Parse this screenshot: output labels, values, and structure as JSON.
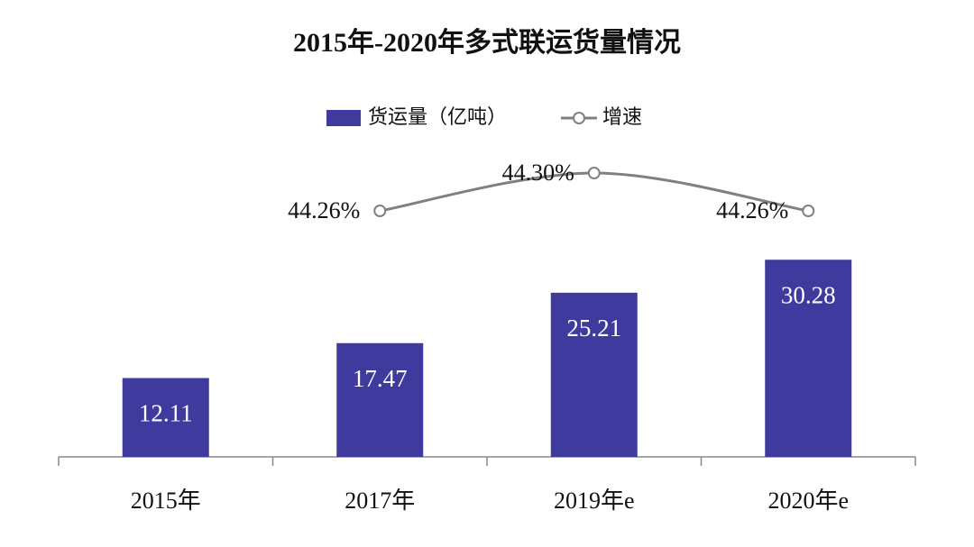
{
  "chart_data": {
    "type": "bar-line",
    "title": "2015年-2020年多式联运货量情况",
    "categories": [
      "2015年",
      "2017年",
      "2019年e",
      "2020年e"
    ],
    "series": [
      {
        "name": "货运量（亿吨）",
        "type": "bar",
        "color": "#3f3a9e",
        "values": [
          12.11,
          17.47,
          25.21,
          30.28
        ]
      },
      {
        "name": "增速",
        "type": "line",
        "axis": "y2",
        "color": "#808080",
        "values": [
          null,
          44.26,
          44.3,
          44.26
        ],
        "value_labels": [
          null,
          "44.26%",
          "44.30%",
          "44.26%"
        ]
      }
    ],
    "ylim": [
      0,
      40
    ],
    "y2lim": [
      44.0,
      44.34
    ],
    "legend": "top"
  }
}
